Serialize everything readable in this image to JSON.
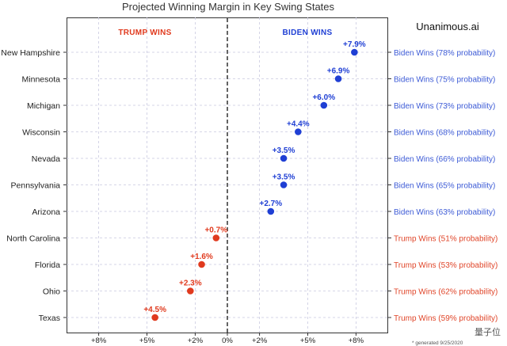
{
  "chart_data": {
    "type": "scatter",
    "title": "Projected Winning Margin in Key Swing States",
    "brand": "Unanimous.ai",
    "side_labels": {
      "left": "TRUMP WINS",
      "right": "BIDEN WINS"
    },
    "footnote": "* generated 9/25/2020",
    "x_domain": [
      -10,
      10
    ],
    "x_ticks": [
      {
        "value": -8,
        "label": "+8%"
      },
      {
        "value": -5,
        "label": "+5%"
      },
      {
        "value": -2,
        "label": "+2%"
      },
      {
        "value": 0,
        "label": "0%"
      },
      {
        "value": 2,
        "label": "+2%"
      },
      {
        "value": 5,
        "label": "+5%"
      },
      {
        "value": 8,
        "label": "+8%"
      }
    ],
    "states": [
      {
        "name": "New Hampshire",
        "margin": 7.9,
        "label": "+7.9%",
        "winner": "biden",
        "outcome": "Biden Wins (78% probability)"
      },
      {
        "name": "Minnesota",
        "margin": 6.9,
        "label": "+6.9%",
        "winner": "biden",
        "outcome": "Biden Wins (75% probability)"
      },
      {
        "name": "Michigan",
        "margin": 6.0,
        "label": "+6.0%",
        "winner": "biden",
        "outcome": "Biden Wins (73% probability)"
      },
      {
        "name": "Wisconsin",
        "margin": 4.4,
        "label": "+4.4%",
        "winner": "biden",
        "outcome": "Biden Wins (68% probability)"
      },
      {
        "name": "Nevada",
        "margin": 3.5,
        "label": "+3.5%",
        "winner": "biden",
        "outcome": "Biden Wins (66% probability)"
      },
      {
        "name": "Pennsylvania",
        "margin": 3.5,
        "label": "+3.5%",
        "winner": "biden",
        "outcome": "Biden Wins (65% probability)"
      },
      {
        "name": "Arizona",
        "margin": 2.7,
        "label": "+2.7%",
        "winner": "biden",
        "outcome": "Biden Wins (63% probability)"
      },
      {
        "name": "North Carolina",
        "margin": -0.7,
        "label": "+0.7%",
        "winner": "trump",
        "outcome": "Trump Wins (51% probability)"
      },
      {
        "name": "Florida",
        "margin": -1.6,
        "label": "+1.6%",
        "winner": "trump",
        "outcome": "Trump Wins (53% probability)"
      },
      {
        "name": "Ohio",
        "margin": -2.3,
        "label": "+2.3%",
        "winner": "trump",
        "outcome": "Trump Wins (62% probability)"
      },
      {
        "name": "Texas",
        "margin": -4.5,
        "label": "+4.5%",
        "winner": "trump",
        "outcome": "Trump Wins (59% probability)"
      }
    ],
    "colors": {
      "biden": "#1f3fd4",
      "trump": "#e03a1e",
      "biden_text": "#3d5bd6",
      "trump_text": "#e0462a",
      "grid": "#c9c9e0"
    },
    "grid": true
  },
  "watermark": "量子位"
}
